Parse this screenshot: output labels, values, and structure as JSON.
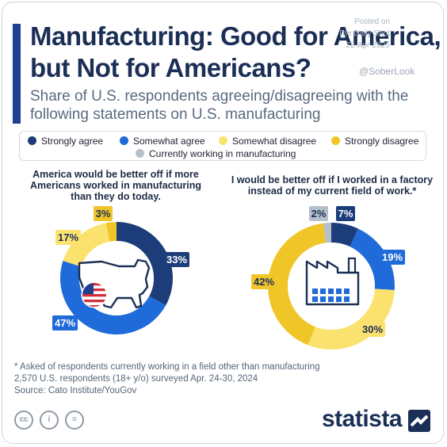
{
  "title": "Manufacturing: Good for America, but Not for Americans?",
  "subtitle": "Share of U.S. respondents agreeing/disagreeing with the following statements on U.S. manufacturing",
  "watermark": {
    "posted_on": "Posted on",
    "site": "The Daily Shot",
    "date": "22-Apr-2025"
  },
  "handle": "@SoberLook",
  "legend": [
    {
      "label": "Strongly agree",
      "color": "#1c3d7a"
    },
    {
      "label": "Somewhat agree",
      "color": "#1f6bd9"
    },
    {
      "label": "Somewhat disagree",
      "color": "#fbe26e"
    },
    {
      "label": "Strongly disagree",
      "color": "#f0c528"
    },
    {
      "label": "Currently working in manufacturing",
      "color": "#b5c0ca"
    }
  ],
  "chart_data": [
    {
      "type": "pie",
      "title": "America would be better off if more Americans worked in manufacturing than they do today.",
      "slices": [
        {
          "label": "Strongly agree",
          "value": 33,
          "display": "33%"
        },
        {
          "label": "Somewhat agree",
          "value": 47,
          "display": "47%"
        },
        {
          "label": "Somewhat disagree",
          "value": 17,
          "display": "17%"
        },
        {
          "label": "Strongly disagree",
          "value": 3,
          "display": "3%"
        }
      ],
      "center_icon": "us-map-with-flag-icon"
    },
    {
      "type": "pie",
      "title": "I would be better off if I worked in a factory instead of my current field of work.*",
      "slices": [
        {
          "label": "Strongly agree",
          "value": 7,
          "display": "7%"
        },
        {
          "label": "Somewhat agree",
          "value": 19,
          "display": "19%"
        },
        {
          "label": "Somewhat disagree",
          "value": 30,
          "display": "30%"
        },
        {
          "label": "Strongly disagree",
          "value": 42,
          "display": "42%"
        },
        {
          "label": "Currently working in manufacturing",
          "value": 2,
          "display": "2%"
        }
      ],
      "center_icon": "factory-icon"
    }
  ],
  "footnote": {
    "line1": "* Asked of respondents currently working in a field other than manufacturing",
    "line2": "2,570 U.S. respondents (18+ y/o) surveyed Apr. 24-30, 2024",
    "line3": "Source: Cato Institute/YouGov"
  },
  "brand": "statista",
  "license_icons": [
    "creative-commons-icon",
    "attribution-icon",
    "no-derivatives-icon"
  ]
}
